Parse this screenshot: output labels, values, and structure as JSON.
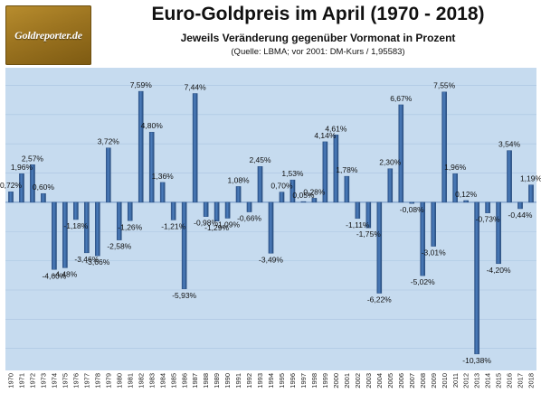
{
  "logo": {
    "text": "Goldreporter.de"
  },
  "header": {
    "title": "Euro-Goldpreis im April (1970 - 2018)",
    "subtitle": "Jeweils Veränderung gegenüber Vormonat in Prozent",
    "source": "(Quelle: LBMA; vor 2001: DM-Kurs / 1,95583)"
  },
  "colors": {
    "plot_background": "#c6dbef",
    "bar": "#3d6aa6",
    "bar_dark": "#24487a",
    "gridline": "#a9c4e0"
  },
  "chart_data": {
    "type": "bar",
    "title": "Euro-Goldpreis im April (1970 - 2018)",
    "categories": [
      "1970",
      "1971",
      "1972",
      "1973",
      "1974",
      "1975",
      "1976",
      "1977",
      "1978",
      "1979",
      "1980",
      "1981",
      "1982",
      "1983",
      "1984",
      "1985",
      "1986",
      "1987",
      "1988",
      "1989",
      "1990",
      "1991",
      "1992",
      "1993",
      "1994",
      "1995",
      "1996",
      "1997",
      "1998",
      "1999",
      "2000",
      "2001",
      "2002",
      "2003",
      "2004",
      "2005",
      "2006",
      "2007",
      "2008",
      "2009",
      "2010",
      "2011",
      "2012",
      "2013",
      "2014",
      "2015",
      "2016",
      "2017",
      "2018"
    ],
    "values": [
      0.72,
      1.96,
      2.57,
      0.6,
      -4.6,
      -4.48,
      -1.18,
      -3.46,
      -3.66,
      3.72,
      -2.58,
      -1.26,
      7.59,
      4.8,
      1.36,
      -1.21,
      -5.93,
      7.44,
      -0.98,
      -1.29,
      -1.09,
      1.08,
      -0.66,
      2.45,
      -3.49,
      0.7,
      1.53,
      0.05,
      0.28,
      4.14,
      4.61,
      1.78,
      -1.11,
      -1.75,
      -6.22,
      2.3,
      6.67,
      -0.08,
      -5.02,
      -3.01,
      7.55,
      1.96,
      0.12,
      -10.38,
      -0.73,
      -4.2,
      3.54,
      -0.44,
      1.19
    ],
    "labels": [
      "0,72%",
      "1,96%",
      "2,57%",
      "0,60%",
      "-4,60%",
      "-4,48%",
      "-1,18%",
      "-3,46%",
      "-3,66%",
      "3,72%",
      "-2,58%",
      "-1,26%",
      "7,59%",
      "4,80%",
      "1,36%",
      "-1,21%",
      "-5,93%",
      "7,44%",
      "-0,98%",
      "-1,29%",
      "-1,09%",
      "1,08%",
      "-0,66%",
      "2,45%",
      "-3,49%",
      "0,70%",
      "1,53%",
      "0,05%",
      "0,28%",
      "4,14%",
      "4,61%",
      "1,78%",
      "-1,11%",
      "-1,75%",
      "-6,22%",
      "2,30%",
      "6,67%",
      "-0,08%",
      "-5,02%",
      "-3,01%",
      "7,55%",
      "1,96%",
      "0,12%",
      "-10,38%",
      "-0,73%",
      "-4,20%",
      "3,54%",
      "-0,44%",
      "1,19%"
    ],
    "ylim": [
      -11.5,
      9.2
    ],
    "grid": true,
    "legend": "none"
  }
}
